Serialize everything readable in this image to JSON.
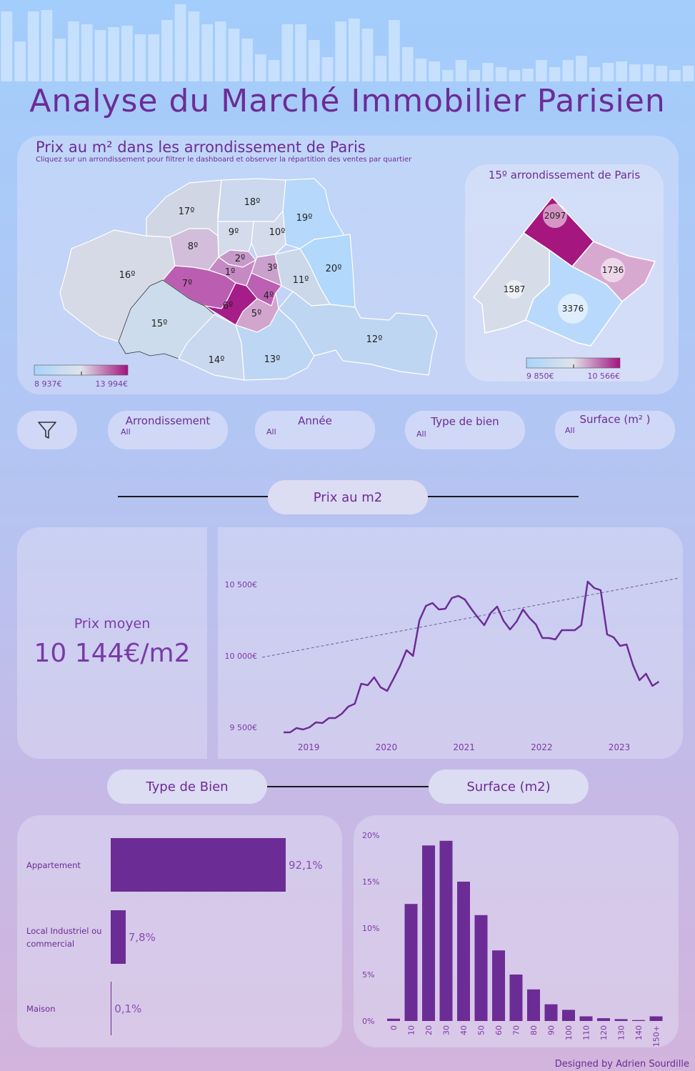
{
  "title": "Analyse du Marché Immobilier Parisien",
  "colors": {
    "accent": "#6c2c96",
    "light_blue": "#a9d4fb",
    "magenta": "#a3127f",
    "neutral": "#dfe3ea"
  },
  "map": {
    "title": "Prix au m² dans les arrondissement de Paris",
    "subtitle": "Cliquez sur un arrondissement pour filtrer le dashboard et observer la répartition des ventes par quartier",
    "legend_min": "8 937€",
    "legend_max": "13 994€",
    "labels": {
      "a1": "1º",
      "a2": "2º",
      "a3": "3º",
      "a4": "4º",
      "a5": "5º",
      "a6": "6º",
      "a7": "7º",
      "a8": "8º",
      "a9": "9º",
      "a10": "10º",
      "a11": "11º",
      "a12": "12º",
      "a13": "13º",
      "a14": "14º",
      "a15": "15º",
      "a16": "16º",
      "a17": "17º",
      "a18": "18º",
      "a19": "19º",
      "a20": "20º"
    }
  },
  "detail": {
    "title": "15º arrondissement de Paris",
    "values": [
      "2097",
      "1736",
      "3376",
      "1587"
    ],
    "legend_min": "9 850€",
    "legend_max": "10 566€"
  },
  "filters": [
    {
      "label": "Arrondissement",
      "value": "All"
    },
    {
      "label": "Année",
      "value": "All"
    },
    {
      "label": "Type de bien",
      "value": "All"
    },
    {
      "label": "Surface (m² )",
      "value": "All"
    }
  ],
  "sections": {
    "price": "Prix au m2",
    "type": "Type de Bien",
    "surface": "Surface (m2)"
  },
  "kpi": {
    "label": "Prix moyen",
    "value": "10 144€/m2"
  },
  "footer": "Designed by Adrien Sourdille",
  "chart_data": [
    {
      "type": "line",
      "x_ticks": [
        "2019",
        "2020",
        "2021",
        "2022",
        "2023"
      ],
      "y_ticks": [
        "9 500€",
        "10 000€",
        "10 500€"
      ],
      "ylim": [
        9450,
        10850
      ],
      "start": [
        2018,
        10
      ],
      "values": [
        9465,
        9465,
        9495,
        9485,
        9500,
        9535,
        9530,
        9565,
        9565,
        9595,
        9645,
        9665,
        9805,
        9795,
        9850,
        9780,
        9755,
        9840,
        9930,
        10040,
        10000,
        10250,
        10350,
        10370,
        10325,
        10330,
        10405,
        10420,
        10395,
        10330,
        10270,
        10215,
        10300,
        10345,
        10245,
        10185,
        10240,
        10325,
        10265,
        10220,
        10125,
        10125,
        10115,
        10180,
        10180,
        10180,
        10215,
        10520,
        10475,
        10460,
        10150,
        10130,
        10070,
        10080,
        9935,
        9830,
        9875,
        9790,
        9820
      ],
      "trend": [
        9990,
        10545
      ]
    },
    {
      "type": "bar",
      "orientation": "horizontal",
      "categories": [
        "Appartement",
        "Local Industriel ou commercial",
        "Maison"
      ],
      "values": [
        92.1,
        7.8,
        0.1
      ],
      "labels": [
        "92,1%",
        "7,8%",
        "0,1%"
      ]
    },
    {
      "type": "bar",
      "categories": [
        "0",
        "10",
        "20",
        "30",
        "40",
        "50",
        "60",
        "70",
        "80",
        "90",
        "100",
        "110",
        "120",
        "130",
        "140",
        "150+"
      ],
      "values": [
        0.25,
        12.6,
        18.9,
        19.4,
        15.0,
        11.4,
        7.6,
        5.0,
        3.4,
        1.8,
        1.2,
        0.5,
        0.3,
        0.2,
        0.1,
        0.5
      ],
      "y_ticks": [
        "0%",
        "5%",
        "10%",
        "15%",
        "20%"
      ],
      "ylim": [
        0,
        20
      ]
    }
  ]
}
